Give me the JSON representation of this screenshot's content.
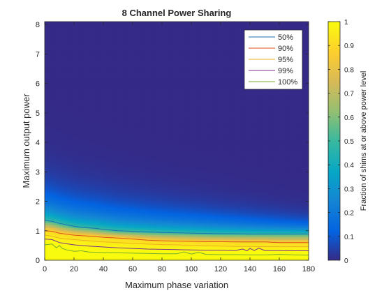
{
  "chart_data": {
    "type": "heatmap",
    "title": "8 Channel Power Sharing",
    "xlabel": "Maximum phase variation",
    "ylabel": "Maximum output power",
    "xlim": [
      0,
      180
    ],
    "ylim": [
      0,
      8.1
    ],
    "x_ticks": [
      "0",
      "20",
      "40",
      "60",
      "80",
      "100",
      "120",
      "140",
      "160",
      "180"
    ],
    "y_ticks": [
      "0",
      "1",
      "2",
      "3",
      "4",
      "5",
      "6",
      "7",
      "8"
    ],
    "colorbar": {
      "label": "Fraction of shims at or above power level",
      "range": [
        0,
        1
      ],
      "ticks": [
        "0",
        "0.1",
        "0.2",
        "0.3",
        "0.4",
        "0.5",
        "0.6",
        "0.7",
        "0.8",
        "0.9",
        "1"
      ],
      "colormap": "parula"
    },
    "grid": false,
    "legend_position": "top-right",
    "contours": [
      {
        "name": "50%",
        "color": "#1f6fb5",
        "x": [
          0,
          5,
          10,
          15,
          20,
          25,
          30,
          35,
          40,
          50,
          60,
          70,
          80,
          90,
          100,
          110,
          120,
          130,
          140,
          150,
          160,
          170,
          180
        ],
        "y": [
          1.35,
          1.32,
          1.25,
          1.2,
          1.15,
          1.12,
          1.1,
          1.08,
          1.05,
          1.0,
          0.98,
          0.96,
          0.94,
          0.93,
          0.92,
          0.91,
          0.9,
          0.9,
          0.89,
          0.89,
          0.89,
          0.89,
          0.89
        ]
      },
      {
        "name": "90%",
        "color": "#d95319",
        "x": [
          0,
          5,
          10,
          15,
          20,
          30,
          40,
          50,
          60,
          70,
          80,
          90,
          100,
          110,
          120,
          130,
          140,
          150,
          160,
          170,
          180
        ],
        "y": [
          1.0,
          0.98,
          0.92,
          0.88,
          0.85,
          0.82,
          0.78,
          0.75,
          0.72,
          0.68,
          0.66,
          0.65,
          0.64,
          0.63,
          0.63,
          0.62,
          0.62,
          0.62,
          0.6,
          0.6,
          0.6
        ]
      },
      {
        "name": "95%",
        "color": "#edb120",
        "x": [
          0,
          5,
          10,
          15,
          20,
          30,
          40,
          50,
          60,
          70,
          80,
          90,
          100,
          110,
          120,
          130,
          140,
          150,
          160,
          170,
          180
        ],
        "y": [
          0.85,
          0.82,
          0.75,
          0.72,
          0.7,
          0.66,
          0.62,
          0.6,
          0.57,
          0.55,
          0.53,
          0.52,
          0.5,
          0.49,
          0.48,
          0.47,
          0.47,
          0.46,
          0.46,
          0.46,
          0.46
        ]
      },
      {
        "name": "99%",
        "color": "#7e2f8e",
        "x": [
          0,
          5,
          10,
          15,
          20,
          30,
          40,
          50,
          60,
          70,
          80,
          90,
          100,
          110,
          120,
          130,
          135,
          138,
          140,
          143,
          146,
          150,
          160,
          170,
          180
        ],
        "y": [
          0.72,
          0.7,
          0.6,
          0.56,
          0.52,
          0.48,
          0.45,
          0.42,
          0.4,
          0.38,
          0.37,
          0.36,
          0.35,
          0.34,
          0.34,
          0.33,
          0.38,
          0.32,
          0.4,
          0.33,
          0.41,
          0.33,
          0.33,
          0.32,
          0.32
        ]
      },
      {
        "name": "100%",
        "color": "#77ac30",
        "x": [
          0,
          5,
          8,
          10,
          12,
          15,
          20,
          25,
          30,
          40,
          50,
          60,
          70,
          80,
          90,
          95,
          100,
          105,
          110,
          120,
          130,
          140,
          150,
          160,
          170,
          180
        ],
        "y": [
          0.52,
          0.55,
          0.42,
          0.5,
          0.4,
          0.35,
          0.3,
          0.32,
          0.28,
          0.26,
          0.25,
          0.24,
          0.23,
          0.22,
          0.22,
          0.28,
          0.21,
          0.27,
          0.2,
          0.19,
          0.19,
          0.18,
          0.18,
          0.2,
          0.18,
          0.17
        ]
      }
    ]
  }
}
